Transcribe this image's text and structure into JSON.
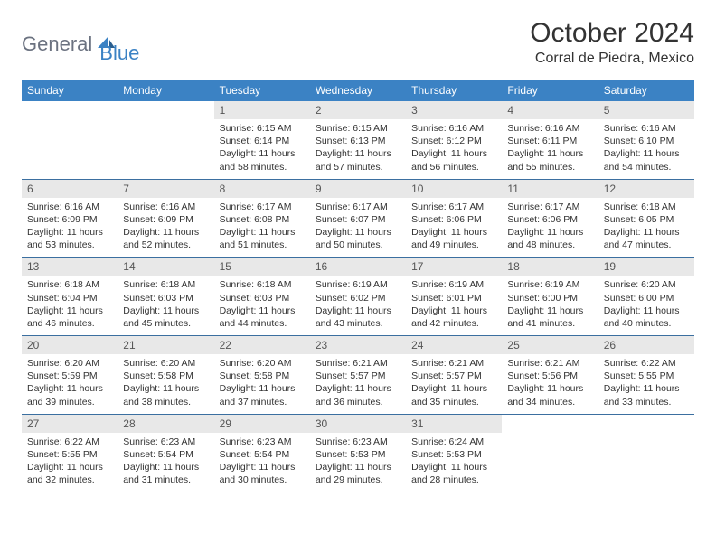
{
  "brand": {
    "part1": "General",
    "part2": "Blue"
  },
  "title": "October 2024",
  "location": "Corral de Piedra, Mexico",
  "colors": {
    "header_bg": "#3b82c4",
    "header_fg": "#ffffff",
    "daynum_bg": "#e8e8e8",
    "row_border": "#3b6fa0",
    "logo_gray": "#6b7280",
    "logo_blue": "#3b82c4"
  },
  "weekdays": [
    "Sunday",
    "Monday",
    "Tuesday",
    "Wednesday",
    "Thursday",
    "Friday",
    "Saturday"
  ],
  "weeks": [
    [
      {
        "n": "",
        "sr": "",
        "ss": "",
        "dl": "",
        "empty": true
      },
      {
        "n": "",
        "sr": "",
        "ss": "",
        "dl": "",
        "empty": true
      },
      {
        "n": "1",
        "sr": "Sunrise: 6:15 AM",
        "ss": "Sunset: 6:14 PM",
        "dl": "Daylight: 11 hours and 58 minutes."
      },
      {
        "n": "2",
        "sr": "Sunrise: 6:15 AM",
        "ss": "Sunset: 6:13 PM",
        "dl": "Daylight: 11 hours and 57 minutes."
      },
      {
        "n": "3",
        "sr": "Sunrise: 6:16 AM",
        "ss": "Sunset: 6:12 PM",
        "dl": "Daylight: 11 hours and 56 minutes."
      },
      {
        "n": "4",
        "sr": "Sunrise: 6:16 AM",
        "ss": "Sunset: 6:11 PM",
        "dl": "Daylight: 11 hours and 55 minutes."
      },
      {
        "n": "5",
        "sr": "Sunrise: 6:16 AM",
        "ss": "Sunset: 6:10 PM",
        "dl": "Daylight: 11 hours and 54 minutes."
      }
    ],
    [
      {
        "n": "6",
        "sr": "Sunrise: 6:16 AM",
        "ss": "Sunset: 6:09 PM",
        "dl": "Daylight: 11 hours and 53 minutes."
      },
      {
        "n": "7",
        "sr": "Sunrise: 6:16 AM",
        "ss": "Sunset: 6:09 PM",
        "dl": "Daylight: 11 hours and 52 minutes."
      },
      {
        "n": "8",
        "sr": "Sunrise: 6:17 AM",
        "ss": "Sunset: 6:08 PM",
        "dl": "Daylight: 11 hours and 51 minutes."
      },
      {
        "n": "9",
        "sr": "Sunrise: 6:17 AM",
        "ss": "Sunset: 6:07 PM",
        "dl": "Daylight: 11 hours and 50 minutes."
      },
      {
        "n": "10",
        "sr": "Sunrise: 6:17 AM",
        "ss": "Sunset: 6:06 PM",
        "dl": "Daylight: 11 hours and 49 minutes."
      },
      {
        "n": "11",
        "sr": "Sunrise: 6:17 AM",
        "ss": "Sunset: 6:06 PM",
        "dl": "Daylight: 11 hours and 48 minutes."
      },
      {
        "n": "12",
        "sr": "Sunrise: 6:18 AM",
        "ss": "Sunset: 6:05 PM",
        "dl": "Daylight: 11 hours and 47 minutes."
      }
    ],
    [
      {
        "n": "13",
        "sr": "Sunrise: 6:18 AM",
        "ss": "Sunset: 6:04 PM",
        "dl": "Daylight: 11 hours and 46 minutes."
      },
      {
        "n": "14",
        "sr": "Sunrise: 6:18 AM",
        "ss": "Sunset: 6:03 PM",
        "dl": "Daylight: 11 hours and 45 minutes."
      },
      {
        "n": "15",
        "sr": "Sunrise: 6:18 AM",
        "ss": "Sunset: 6:03 PM",
        "dl": "Daylight: 11 hours and 44 minutes."
      },
      {
        "n": "16",
        "sr": "Sunrise: 6:19 AM",
        "ss": "Sunset: 6:02 PM",
        "dl": "Daylight: 11 hours and 43 minutes."
      },
      {
        "n": "17",
        "sr": "Sunrise: 6:19 AM",
        "ss": "Sunset: 6:01 PM",
        "dl": "Daylight: 11 hours and 42 minutes."
      },
      {
        "n": "18",
        "sr": "Sunrise: 6:19 AM",
        "ss": "Sunset: 6:00 PM",
        "dl": "Daylight: 11 hours and 41 minutes."
      },
      {
        "n": "19",
        "sr": "Sunrise: 6:20 AM",
        "ss": "Sunset: 6:00 PM",
        "dl": "Daylight: 11 hours and 40 minutes."
      }
    ],
    [
      {
        "n": "20",
        "sr": "Sunrise: 6:20 AM",
        "ss": "Sunset: 5:59 PM",
        "dl": "Daylight: 11 hours and 39 minutes."
      },
      {
        "n": "21",
        "sr": "Sunrise: 6:20 AM",
        "ss": "Sunset: 5:58 PM",
        "dl": "Daylight: 11 hours and 38 minutes."
      },
      {
        "n": "22",
        "sr": "Sunrise: 6:20 AM",
        "ss": "Sunset: 5:58 PM",
        "dl": "Daylight: 11 hours and 37 minutes."
      },
      {
        "n": "23",
        "sr": "Sunrise: 6:21 AM",
        "ss": "Sunset: 5:57 PM",
        "dl": "Daylight: 11 hours and 36 minutes."
      },
      {
        "n": "24",
        "sr": "Sunrise: 6:21 AM",
        "ss": "Sunset: 5:57 PM",
        "dl": "Daylight: 11 hours and 35 minutes."
      },
      {
        "n": "25",
        "sr": "Sunrise: 6:21 AM",
        "ss": "Sunset: 5:56 PM",
        "dl": "Daylight: 11 hours and 34 minutes."
      },
      {
        "n": "26",
        "sr": "Sunrise: 6:22 AM",
        "ss": "Sunset: 5:55 PM",
        "dl": "Daylight: 11 hours and 33 minutes."
      }
    ],
    [
      {
        "n": "27",
        "sr": "Sunrise: 6:22 AM",
        "ss": "Sunset: 5:55 PM",
        "dl": "Daylight: 11 hours and 32 minutes."
      },
      {
        "n": "28",
        "sr": "Sunrise: 6:23 AM",
        "ss": "Sunset: 5:54 PM",
        "dl": "Daylight: 11 hours and 31 minutes."
      },
      {
        "n": "29",
        "sr": "Sunrise: 6:23 AM",
        "ss": "Sunset: 5:54 PM",
        "dl": "Daylight: 11 hours and 30 minutes."
      },
      {
        "n": "30",
        "sr": "Sunrise: 6:23 AM",
        "ss": "Sunset: 5:53 PM",
        "dl": "Daylight: 11 hours and 29 minutes."
      },
      {
        "n": "31",
        "sr": "Sunrise: 6:24 AM",
        "ss": "Sunset: 5:53 PM",
        "dl": "Daylight: 11 hours and 28 minutes."
      },
      {
        "n": "",
        "sr": "",
        "ss": "",
        "dl": "",
        "empty": true
      },
      {
        "n": "",
        "sr": "",
        "ss": "",
        "dl": "",
        "empty": true
      }
    ]
  ]
}
